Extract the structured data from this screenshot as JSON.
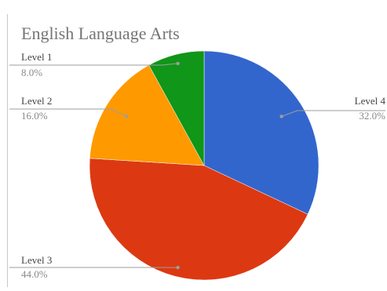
{
  "chart_data": {
    "type": "pie",
    "title": "English Language Arts",
    "categories": [
      "Level 4",
      "Level 3",
      "Level 2",
      "Level 1"
    ],
    "values": [
      32.0,
      44.0,
      16.0,
      8.0
    ],
    "value_labels": [
      "32.0%",
      "44.0%",
      "16.0%",
      "8.0%"
    ],
    "colors": [
      "#3366cc",
      "#dc3912",
      "#ff9900",
      "#109618"
    ],
    "start": "12 o'clock",
    "direction": "clockwise",
    "legend": "none",
    "label_placement": "outside-with-leader-lines"
  }
}
